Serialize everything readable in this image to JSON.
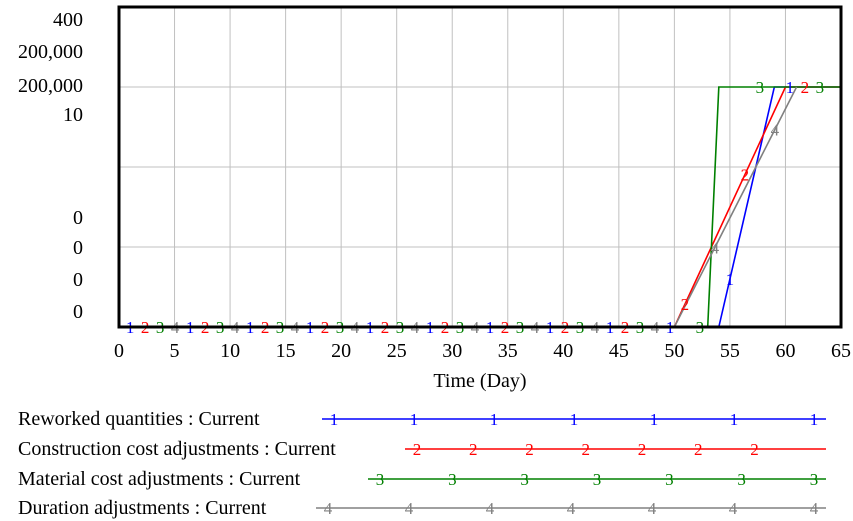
{
  "chart_data": {
    "type": "line",
    "xlabel": "Time (Day)",
    "xlim": [
      0,
      65
    ],
    "x_ticks": [
      "0",
      "5",
      "10",
      "15",
      "20",
      "25",
      "30",
      "35",
      "40",
      "45",
      "50",
      "55",
      "60",
      "65"
    ],
    "y_left_labels": [
      "400",
      "200,000",
      "200,000",
      "10",
      "0",
      "0",
      "0",
      "0"
    ],
    "grid": true,
    "series": [
      {
        "name": "Reworked quantities : Current",
        "marker": "1",
        "color": "#0000ff",
        "points": [
          [
            0,
            0
          ],
          [
            54,
            0
          ],
          [
            59,
            1
          ],
          [
            65,
            1
          ]
        ]
      },
      {
        "name": "Construction cost adjustments : Current",
        "marker": "2",
        "color": "#ff0000",
        "points": [
          [
            0,
            0
          ],
          [
            50,
            0
          ],
          [
            60,
            1
          ],
          [
            65,
            1
          ]
        ]
      },
      {
        "name": "Material cost adjustments : Current",
        "marker": "3",
        "color": "#008000",
        "points": [
          [
            0,
            0
          ],
          [
            53,
            0
          ],
          [
            54,
            1
          ],
          [
            65,
            1
          ]
        ]
      },
      {
        "name": "Duration adjustments : Current",
        "marker": "4",
        "color": "#808080",
        "points": [
          [
            0,
            0
          ],
          [
            50,
            0
          ],
          [
            61,
            1
          ]
        ]
      }
    ]
  }
}
